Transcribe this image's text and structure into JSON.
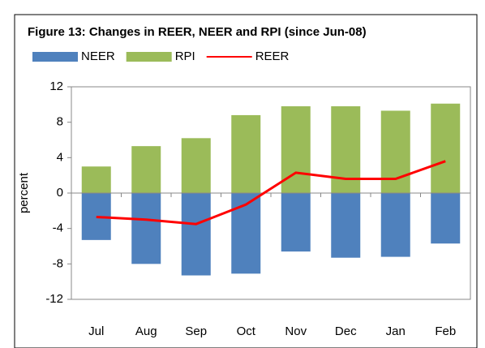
{
  "chart_data": {
    "type": "bar-line",
    "title": "Figure 13: Changes in REER, NEER and RPI (since Jun-08)",
    "y_label": "percent",
    "categories": [
      "Jul",
      "Aug",
      "Sep",
      "Oct",
      "Nov",
      "Dec",
      "Jan",
      "Feb"
    ],
    "series": [
      {
        "name": "NEER",
        "color": "#4f81bd",
        "kind": "bar",
        "values": [
          -5.3,
          -8.0,
          -9.3,
          -9.1,
          -6.6,
          -7.3,
          -7.2,
          -5.7
        ]
      },
      {
        "name": "RPI",
        "color": "#9bbb59",
        "kind": "bar",
        "values": [
          3.0,
          5.3,
          6.2,
          8.8,
          9.8,
          9.8,
          9.3,
          10.1
        ]
      },
      {
        "name": "REER",
        "color": "#ff0000",
        "kind": "line",
        "values": [
          -2.7,
          -3.0,
          -3.5,
          -1.3,
          2.3,
          1.6,
          1.6,
          3.6
        ]
      }
    ],
    "ylim": [
      -12,
      12
    ],
    "yticks": [
      -12,
      -8,
      -4,
      0,
      4,
      8,
      12
    ],
    "grid": false,
    "legend": "top"
  }
}
